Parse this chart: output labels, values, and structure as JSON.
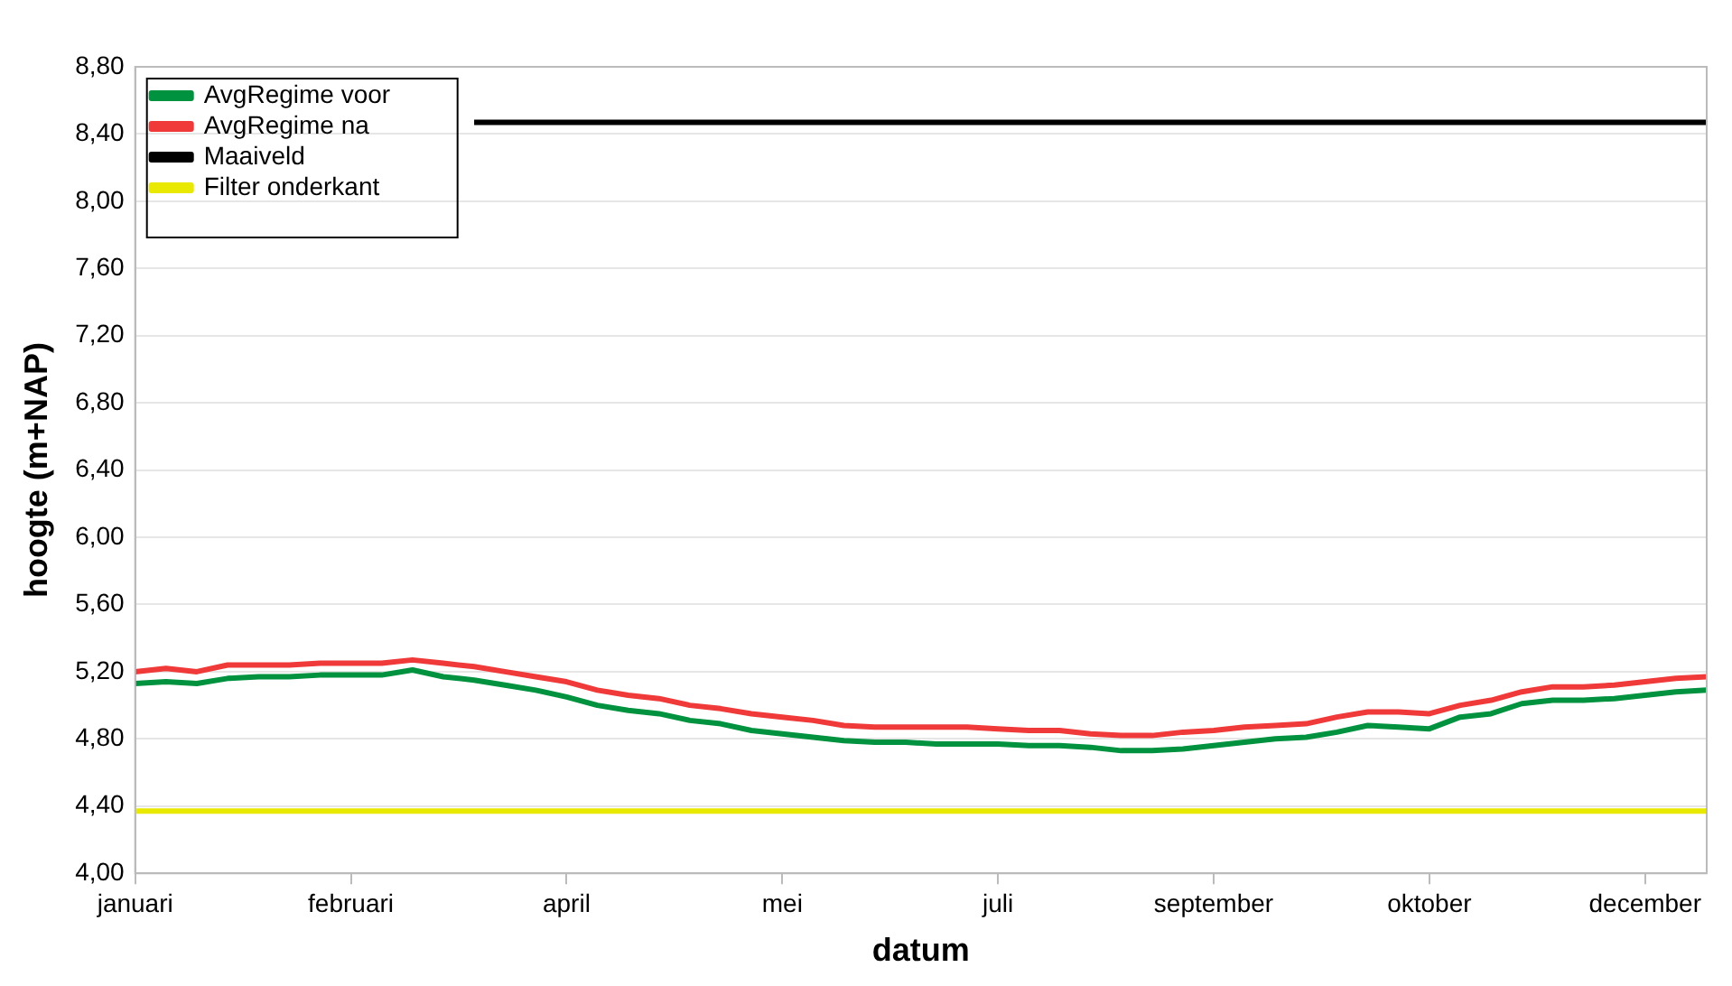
{
  "chart_data": {
    "type": "line",
    "xlabel": "datum",
    "ylabel": "hoogte (m+NAP)",
    "categories": [
      "januari",
      null,
      null,
      null,
      null,
      null,
      null,
      "februari",
      null,
      null,
      null,
      null,
      null,
      null,
      "april",
      null,
      null,
      null,
      null,
      null,
      null,
      "mei",
      null,
      null,
      null,
      null,
      null,
      null,
      "juli",
      null,
      null,
      null,
      null,
      null,
      null,
      "september",
      null,
      null,
      null,
      null,
      null,
      null,
      "oktober",
      null,
      null,
      null,
      null,
      null,
      null,
      "december",
      null,
      null
    ],
    "series": [
      {
        "name": "AvgRegime voor",
        "color": "#00923f",
        "values": [
          5.13,
          5.14,
          5.13,
          5.16,
          5.17,
          5.17,
          5.18,
          5.18,
          5.18,
          5.21,
          5.17,
          5.15,
          5.12,
          5.09,
          5.05,
          5.0,
          4.97,
          4.95,
          4.91,
          4.89,
          4.85,
          4.83,
          4.81,
          4.79,
          4.78,
          4.78,
          4.77,
          4.77,
          4.77,
          4.76,
          4.76,
          4.75,
          4.73,
          4.73,
          4.74,
          4.76,
          4.78,
          4.8,
          4.81,
          4.84,
          4.88,
          4.87,
          4.86,
          4.93,
          4.95,
          5.01,
          5.03,
          5.03,
          5.04,
          5.06,
          5.08,
          5.09
        ]
      },
      {
        "name": "AvgRegime na",
        "color": "#f03a3a",
        "values": [
          5.2,
          5.22,
          5.2,
          5.24,
          5.24,
          5.24,
          5.25,
          5.25,
          5.25,
          5.27,
          5.25,
          5.23,
          5.2,
          5.17,
          5.14,
          5.09,
          5.06,
          5.04,
          5.0,
          4.98,
          4.95,
          4.93,
          4.91,
          4.88,
          4.87,
          4.87,
          4.87,
          4.87,
          4.86,
          4.85,
          4.85,
          4.83,
          4.82,
          4.82,
          4.84,
          4.85,
          4.87,
          4.88,
          4.89,
          4.93,
          4.96,
          4.96,
          4.95,
          5.0,
          5.03,
          5.08,
          5.11,
          5.11,
          5.12,
          5.14,
          5.16,
          5.17
        ]
      },
      {
        "name": "Maaiveld",
        "color": "#000000",
        "values": [
          null,
          null,
          null,
          null,
          null,
          null,
          null,
          null,
          null,
          null,
          null,
          8.47,
          8.47,
          8.47,
          8.47,
          8.47,
          8.47,
          8.47,
          8.47,
          8.47,
          8.47,
          8.47,
          8.47,
          8.47,
          8.47,
          8.47,
          8.47,
          8.47,
          8.47,
          8.47,
          8.47,
          8.47,
          8.47,
          8.47,
          8.47,
          8.47,
          8.47,
          8.47,
          8.47,
          8.47,
          8.47,
          8.47,
          8.47,
          8.47,
          8.47,
          8.47,
          8.47,
          8.47,
          8.47,
          8.47,
          8.47,
          8.47
        ]
      },
      {
        "name": "Filter onderkant",
        "color": "#e8e800",
        "values": [
          4.37,
          4.37,
          4.37,
          4.37,
          4.37,
          4.37,
          4.37,
          4.37,
          4.37,
          4.37,
          4.37,
          4.37,
          4.37,
          4.37,
          4.37,
          4.37,
          4.37,
          4.37,
          4.37,
          4.37,
          4.37,
          4.37,
          4.37,
          4.37,
          4.37,
          4.37,
          4.37,
          4.37,
          4.37,
          4.37,
          4.37,
          4.37,
          4.37,
          4.37,
          4.37,
          4.37,
          4.37,
          4.37,
          4.37,
          4.37,
          4.37,
          4.37,
          4.37,
          4.37,
          4.37,
          4.37,
          4.37,
          4.37,
          4.37,
          4.37,
          4.37,
          4.37
        ]
      }
    ],
    "ylim": [
      4.0,
      8.8
    ],
    "yticks": [
      {
        "value": 4.0,
        "label": "4,00"
      },
      {
        "value": 4.4,
        "label": "4,40"
      },
      {
        "value": 4.8,
        "label": "4,80"
      },
      {
        "value": 5.2,
        "label": "5,20"
      },
      {
        "value": 5.6,
        "label": "5,60"
      },
      {
        "value": 6.0,
        "label": "6,00"
      },
      {
        "value": 6.4,
        "label": "6,40"
      },
      {
        "value": 6.8,
        "label": "6,80"
      },
      {
        "value": 7.2,
        "label": "7,20"
      },
      {
        "value": 7.6,
        "label": "7,60"
      },
      {
        "value": 8.0,
        "label": "8,00"
      },
      {
        "value": 8.4,
        "label": "8,40"
      },
      {
        "value": 8.8,
        "label": "8,80"
      }
    ],
    "grid": "y",
    "legend": "top left",
    "marker": "none",
    "line_style": "solid"
  }
}
